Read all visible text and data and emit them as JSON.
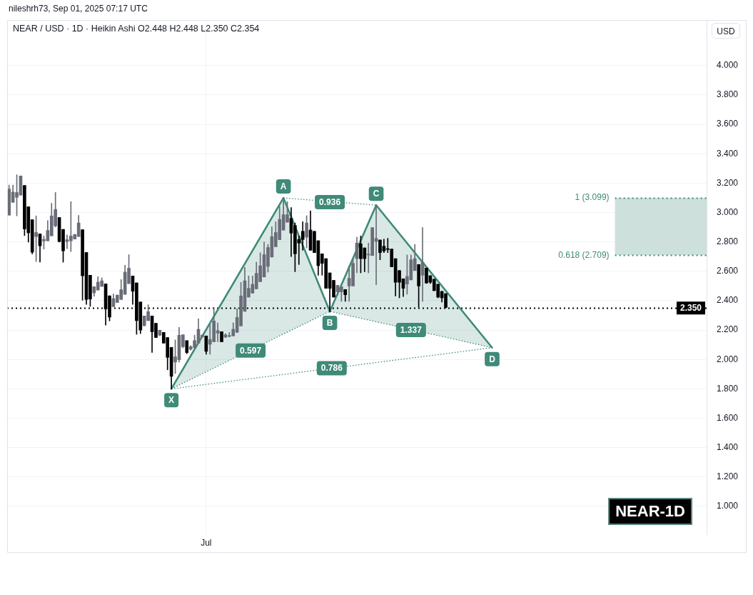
{
  "chart_data": {
    "type": "candlestick",
    "title": "NEAR / USD · 1D · Heikin Ashi O2.448 H2.448 L2.350 C2.354",
    "subtitle": "nileshrh73, Sep 01, 2025 07:17 UTC",
    "ylabel": "USD",
    "marker": "none",
    "grid": true,
    "categories": [
      null,
      null,
      null,
      null,
      null,
      null,
      null,
      null,
      null,
      null,
      null,
      null,
      null,
      null,
      null,
      null,
      null,
      null,
      null,
      null,
      null,
      null,
      null,
      null,
      null,
      null,
      null,
      null,
      null,
      null,
      null,
      null,
      null,
      null,
      null,
      null,
      null,
      null,
      null,
      null,
      null,
      null,
      null,
      null,
      null,
      null,
      null,
      null,
      null,
      null,
      null,
      "Jul",
      null,
      null,
      null,
      null,
      null,
      null,
      null,
      null,
      null,
      null,
      null,
      null,
      null,
      null,
      null,
      null,
      null,
      null,
      null,
      null,
      null,
      null,
      null,
      null,
      null,
      null,
      null,
      null,
      null,
      null,
      null,
      null,
      null,
      null,
      null,
      null,
      null,
      null,
      null,
      null,
      null,
      null,
      null,
      null,
      null,
      null,
      null,
      null,
      null,
      null,
      null,
      null,
      null,
      null,
      null,
      null,
      null,
      null,
      null,
      null,
      null,
      null,
      null,
      null,
      null,
      null,
      null,
      null,
      null,
      null,
      null,
      null,
      null,
      null,
      null,
      null,
      null,
      null,
      null,
      null,
      null,
      null,
      null,
      null,
      null,
      null,
      null,
      null,
      null,
      null,
      null,
      null,
      null,
      null,
      null,
      null,
      null,
      null,
      null,
      null,
      null,
      null,
      null,
      null,
      null,
      null,
      null,
      null,
      null,
      null,
      null,
      null,
      null,
      null,
      null,
      null,
      null,
      null,
      null,
      null,
      null,
      null,
      null,
      null,
      null,
      null,
      null,
      null,
      null
    ],
    "ohlc": [
      [
        2.982,
        3.187,
        2.982,
        3.16
      ],
      [
        3.069,
        3.187,
        3.069,
        3.139
      ],
      [
        3.103,
        3.257,
        2.977,
        3.136
      ],
      [
        3.118,
        3.249,
        3.118,
        3.249
      ],
      [
        3.184,
        3.184,
        2.843,
        2.888
      ],
      [
        3.039,
        3.039,
        2.798,
        2.861
      ],
      [
        2.951,
        2.951,
        2.718,
        2.73
      ],
      [
        2.836,
        2.977,
        2.666,
        2.864
      ],
      [
        2.854,
        2.854,
        2.662,
        2.773
      ],
      [
        2.807,
        2.84,
        2.751,
        2.817
      ],
      [
        2.807,
        2.945,
        2.807,
        2.878
      ],
      [
        2.841,
        3.063,
        2.841,
        2.977
      ],
      [
        2.909,
        3.136,
        2.901,
        3.021
      ],
      [
        2.966,
        2.966,
        2.798,
        2.802
      ],
      [
        2.885,
        2.885,
        2.662,
        2.739
      ],
      [
        2.802,
        2.848,
        2.754,
        2.815
      ],
      [
        2.807,
        3.074,
        2.734,
        2.84
      ],
      [
        2.819,
        2.851,
        2.819,
        2.851
      ],
      [
        2.836,
        2.98,
        2.836,
        2.929
      ],
      [
        2.883,
        2.883,
        2.403,
        2.569
      ],
      [
        2.728,
        2.728,
        2.375,
        2.408
      ],
      [
        2.573,
        2.573,
        2.361,
        2.411
      ],
      [
        2.453,
        2.495,
        2.43,
        2.495
      ],
      [
        2.472,
        2.563,
        2.472,
        2.526
      ],
      [
        2.497,
        2.555,
        2.497,
        2.535
      ],
      [
        2.514,
        2.514,
        2.234,
        2.343
      ],
      [
        2.433,
        2.433,
        2.262,
        2.288
      ],
      [
        2.359,
        2.445,
        2.359,
        2.414
      ],
      [
        2.387,
        2.438,
        2.387,
        2.438
      ],
      [
        2.408,
        2.544,
        2.408,
        2.475
      ],
      [
        2.443,
        2.641,
        2.443,
        2.594
      ],
      [
        2.516,
        2.713,
        2.516,
        2.621
      ],
      [
        2.568,
        2.568,
        2.375,
        2.464
      ],
      [
        2.521,
        2.521,
        2.171,
        2.264
      ],
      [
        2.391,
        2.391,
        2.176,
        2.2
      ],
      [
        2.229,
        2.296,
        2.229,
        2.296
      ],
      [
        2.264,
        2.372,
        2.264,
        2.325
      ],
      [
        2.296,
        2.296,
        2.047,
        2.188
      ],
      [
        2.246,
        2.246,
        2.149,
        2.149
      ],
      [
        2.165,
        2.199,
        2.16,
        2.199
      ],
      [
        2.184,
        2.184,
        2.111,
        2.111
      ],
      [
        2.149,
        2.149,
        1.929,
        2.014
      ],
      [
        2.082,
        2.082,
        1.8,
        1.885
      ],
      [
        1.982,
        2.133,
        1.904,
        2.018
      ],
      [
        1.998,
        2.218,
        1.982,
        2.165
      ],
      [
        2.087,
        2.168,
        2.079,
        2.168
      ],
      [
        2.128,
        2.128,
        2.039,
        2.047
      ],
      [
        2.069,
        2.095,
        2.063,
        2.087
      ],
      [
        2.079,
        2.165,
        2.079,
        2.128
      ],
      [
        2.111,
        2.277,
        2.111,
        2.205
      ],
      [
        2.154,
        2.168,
        2.149,
        2.165
      ],
      [
        2.16,
        2.16,
        2.035,
        2.055
      ],
      [
        2.103,
        2.238,
        2.035,
        2.136
      ],
      [
        2.12,
        2.354,
        2.12,
        2.262
      ],
      [
        2.179,
        2.249,
        2.12,
        2.196
      ],
      [
        2.189,
        2.189,
        2.12,
        2.12
      ],
      [
        2.152,
        2.176,
        2.147,
        2.168
      ],
      [
        2.157,
        2.184,
        2.152,
        2.163
      ],
      [
        2.16,
        2.249,
        2.16,
        2.205
      ],
      [
        2.184,
        2.346,
        2.184,
        2.286
      ],
      [
        2.228,
        2.524,
        2.228,
        2.432
      ],
      [
        2.327,
        2.626,
        2.327,
        2.535
      ],
      [
        2.424,
        2.568,
        2.424,
        2.484
      ],
      [
        2.451,
        2.568,
        2.451,
        2.511
      ],
      [
        2.48,
        2.662,
        2.48,
        2.586
      ],
      [
        2.529,
        2.726,
        2.529,
        2.637
      ],
      [
        2.561,
        2.799,
        2.561,
        2.713
      ],
      [
        2.633,
        2.783,
        2.594,
        2.762
      ],
      [
        2.697,
        2.904,
        2.697,
        2.836
      ],
      [
        2.767,
        2.937,
        2.767,
        2.864
      ],
      [
        2.815,
        3.042,
        2.815,
        2.953
      ],
      [
        2.88,
        3.099,
        2.88,
        2.985
      ],
      [
        2.934,
        3.074,
        2.934,
        2.985
      ],
      [
        2.96,
        3.034,
        2.7,
        2.86
      ],
      [
        2.912,
        2.929,
        2.597,
        2.719
      ],
      [
        2.816,
        2.84,
        2.646,
        2.792
      ],
      [
        2.872,
        2.937,
        2.743,
        2.816
      ],
      [
        2.832,
        2.978,
        2.759,
        2.929
      ],
      [
        2.881,
        3.01,
        2.743,
        2.743
      ],
      [
        2.872,
        2.872,
        2.727,
        2.727
      ],
      [
        2.808,
        2.808,
        2.573,
        2.638
      ],
      [
        2.719,
        2.719,
        2.573,
        2.654
      ],
      [
        2.686,
        2.686,
        2.484,
        2.484
      ],
      [
        2.589,
        2.589,
        2.322,
        2.484
      ],
      [
        2.538,
        2.538,
        2.424,
        2.424
      ],
      [
        2.46,
        2.504,
        2.436,
        2.504
      ],
      [
        2.46,
        2.495,
        2.395,
        2.495
      ],
      [
        2.476,
        2.476,
        2.395,
        2.44
      ],
      [
        2.5,
        2.638,
        2.395,
        2.552
      ],
      [
        2.5,
        2.686,
        2.5,
        2.654
      ],
      [
        2.686,
        2.832,
        2.589,
        2.792
      ],
      [
        2.787,
        2.84,
        2.589,
        2.686
      ],
      [
        2.759,
        2.759,
        2.597,
        2.686
      ],
      [
        2.711,
        2.792,
        2.589,
        2.717
      ],
      [
        2.707,
        2.897,
        2.707,
        2.897
      ],
      [
        2.803,
        3.05,
        2.508,
        2.824
      ],
      [
        2.813,
        2.813,
        2.678,
        2.727
      ],
      [
        2.77,
        2.819,
        2.727,
        2.738
      ],
      [
        2.754,
        2.824,
        2.727,
        2.748
      ],
      [
        2.751,
        2.751,
        2.63,
        2.63
      ],
      [
        2.686,
        2.686,
        2.432,
        2.525
      ],
      [
        2.605,
        2.605,
        2.419,
        2.525
      ],
      [
        2.549,
        2.549,
        2.428,
        2.484
      ],
      [
        2.513,
        2.711,
        2.444,
        2.565
      ],
      [
        2.541,
        2.711,
        2.541,
        2.678
      ],
      [
        2.605,
        2.783,
        2.605,
        2.686
      ],
      [
        2.646,
        2.646,
        2.355,
        2.5
      ],
      [
        2.573,
        2.897,
        2.395,
        2.662
      ],
      [
        2.622,
        2.622,
        2.517,
        2.52
      ],
      [
        2.57,
        2.57,
        2.517,
        2.525
      ],
      [
        2.546,
        2.546,
        2.468,
        2.468
      ],
      [
        2.512,
        2.512,
        2.419,
        2.424
      ],
      [
        2.463,
        2.463,
        2.39,
        2.419
      ],
      [
        2.448,
        2.448,
        2.35,
        2.354
      ],
      null,
      null,
      null,
      null,
      null,
      null,
      null,
      null,
      null,
      null,
      null,
      null,
      null,
      null,
      null,
      null,
      null,
      null,
      null,
      null,
      null,
      null,
      null,
      null,
      null,
      null,
      null,
      null,
      null,
      null,
      null,
      null,
      null,
      null,
      null,
      null,
      null,
      null,
      null,
      null,
      null,
      null,
      null,
      null,
      null,
      null,
      null,
      null,
      null,
      null,
      null,
      null,
      null,
      null,
      null,
      null,
      null,
      null,
      null,
      null,
      null,
      null,
      null,
      null,
      null,
      null,
      null
    ],
    "colors": [
      "#6a6d78",
      "#6a6d78",
      "#6a6d78",
      "#6a6d78",
      "#000000",
      "#000000",
      "#000000",
      "#6a6d78",
      "#000000",
      "#6a6d78",
      "#6a6d78",
      "#6a6d78",
      "#6a6d78",
      "#000000",
      "#000000",
      "#6a6d78",
      "#6a6d78",
      "#6a6d78",
      "#6a6d78",
      "#000000",
      "#000000",
      "#000000",
      "#6a6d78",
      "#6a6d78",
      "#6a6d78",
      "#000000",
      "#000000",
      "#6a6d78",
      "#6a6d78",
      "#6a6d78",
      "#6a6d78",
      "#6a6d78",
      "#000000",
      "#000000",
      "#000000",
      "#6a6d78",
      "#6a6d78",
      "#000000",
      "#000000",
      "#6a6d78",
      "#000000",
      "#000000",
      "#000000",
      "#6a6d78",
      "#6a6d78",
      "#6a6d78",
      "#000000",
      "#6a6d78",
      "#6a6d78",
      "#6a6d78",
      "#6a6d78",
      "#000000",
      "#6a6d78",
      "#6a6d78",
      "#6a6d78",
      "#000000",
      "#6a6d78",
      "#6a6d78",
      "#6a6d78",
      "#6a6d78",
      "#6a6d78",
      "#6a6d78",
      "#6a6d78",
      "#6a6d78",
      "#6a6d78",
      "#6a6d78",
      "#6a6d78",
      "#6a6d78",
      "#6a6d78",
      "#6a6d78",
      "#6a6d78",
      "#6a6d78",
      "#6a6d78",
      "#000000",
      "#000000",
      "#000000",
      "#000000",
      "#6a6d78",
      "#000000",
      "#000000",
      "#000000",
      "#000000",
      "#000000",
      "#000000",
      "#000000",
      "#6a6d78",
      "#6a6d78",
      "#000000",
      "#6a6d78",
      "#6a6d78",
      "#6a6d78",
      "#000000",
      "#000000",
      "#6a6d78",
      "#6a6d78",
      "#6a6d78",
      "#000000",
      "#000000",
      "#000000",
      "#000000",
      "#000000",
      "#000000",
      "#000000",
      "#6a6d78",
      "#6a6d78",
      "#6a6d78",
      "#000000",
      "#6a6d78",
      "#000000",
      "#000000",
      "#000000",
      "#000000",
      "#000000",
      "#000000",
      null,
      null,
      null,
      null,
      null,
      null,
      null,
      null,
      null,
      null,
      null,
      null,
      null,
      null,
      null,
      null,
      null,
      null,
      null,
      null,
      null,
      null,
      null,
      null,
      null,
      null,
      null,
      null,
      null,
      null,
      null,
      null,
      null,
      null,
      null,
      null,
      null,
      null,
      null,
      null,
      null,
      null,
      null,
      null,
      null,
      null,
      null,
      null,
      null,
      null,
      null,
      null,
      null,
      null,
      null,
      null,
      null,
      null,
      null,
      null,
      null,
      null,
      null,
      null,
      null,
      null,
      null
    ],
    "series": [
      {
        "type": "line",
        "color": "#3f8a78",
        "values": [
          null,
          null,
          null,
          null,
          null,
          null,
          null,
          null,
          null,
          null,
          null,
          null,
          null,
          null,
          null,
          null,
          null,
          null,
          null,
          null,
          null,
          null,
          null,
          null,
          null,
          null,
          null,
          null,
          null,
          null,
          null,
          null,
          null,
          null,
          null,
          null,
          null,
          null,
          null,
          null,
          null,
          null,
          1.8,
          null,
          null,
          null,
          null,
          null,
          null,
          null,
          null,
          null,
          null,
          null,
          null,
          null,
          null,
          null,
          null,
          null,
          null,
          null,
          null,
          null,
          null,
          null,
          null,
          null,
          null,
          null,
          null,
          3.099,
          null,
          null,
          null,
          null,
          null,
          null,
          null,
          null,
          null,
          null,
          null,
          2.327,
          null,
          null,
          null,
          null,
          null,
          null,
          null,
          null,
          null,
          null,
          null,
          3.05,
          null,
          null,
          null,
          null,
          null,
          null,
          null,
          null,
          null,
          null,
          null,
          null,
          null,
          null,
          null,
          null,
          null,
          null,
          null,
          null,
          null,
          null,
          null,
          null,
          null,
          null,
          null,
          null,
          null,
          2.08,
          null,
          null,
          null,
          null,
          null,
          null,
          null,
          null,
          null,
          null,
          null,
          null,
          null,
          null,
          null,
          null,
          null,
          null,
          null,
          null,
          null,
          null,
          null,
          null,
          null,
          null,
          null,
          null,
          null,
          null,
          null,
          null,
          null,
          null,
          null,
          null,
          null,
          null,
          null,
          null,
          null,
          null,
          null,
          null,
          null,
          null,
          null,
          null,
          null,
          null,
          null,
          null,
          null,
          null,
          null
        ],
        "lower": [
          null,
          null,
          null,
          null,
          null,
          null,
          null,
          null,
          null,
          null,
          null,
          null,
          null,
          null,
          null,
          null,
          null,
          null,
          null,
          null,
          null,
          null,
          null,
          null,
          null,
          null,
          null,
          null,
          null,
          null,
          null,
          null,
          null,
          null,
          null,
          null,
          null,
          null,
          null,
          null,
          null,
          null,
          1.8,
          null,
          null,
          null,
          null,
          null,
          null,
          null,
          null,
          null,
          null,
          null,
          null,
          null,
          null,
          null,
          null,
          null,
          null,
          null,
          null,
          null,
          null,
          null,
          null,
          null,
          null,
          null,
          null,
          2.173,
          null,
          null,
          null,
          null,
          null,
          null,
          null,
          null,
          null,
          null,
          null,
          2.327,
          null,
          null,
          null,
          null,
          null,
          null,
          null,
          null,
          null,
          null,
          null,
          2.256,
          null,
          null,
          null,
          null,
          null,
          null,
          null,
          null,
          null,
          null,
          null,
          null,
          null,
          null,
          null,
          null,
          null,
          null,
          null,
          null,
          null,
          null,
          null,
          null,
          null,
          null,
          null,
          null,
          null,
          2.08,
          null,
          null,
          null,
          null,
          null,
          null,
          null,
          null,
          null,
          null,
          null,
          null,
          null,
          null,
          null,
          null,
          null,
          null,
          null,
          null,
          null,
          null,
          null,
          null,
          null,
          null,
          null,
          null,
          null,
          null,
          null,
          null,
          null,
          null,
          null,
          null,
          null,
          null,
          null,
          null,
          null,
          null,
          null,
          null,
          null,
          null,
          null,
          null,
          null,
          null,
          null,
          null,
          null,
          null,
          null
        ],
        "upper": [
          null,
          null,
          null,
          null,
          null,
          null,
          null,
          null,
          null,
          null,
          null,
          null,
          null,
          null,
          null,
          null,
          null,
          null,
          null,
          null,
          null,
          null,
          null,
          null,
          null,
          null,
          null,
          null,
          null,
          null,
          null,
          null,
          null,
          null,
          null,
          null,
          null,
          null,
          null,
          null,
          null,
          null,
          1.8,
          null,
          null,
          null,
          null,
          null,
          null,
          null,
          null,
          null,
          null,
          null,
          null,
          null,
          null,
          null,
          null,
          null,
          null,
          null,
          null,
          null,
          null,
          null,
          null,
          null,
          null,
          null,
          null,
          3.099,
          null,
          null,
          null,
          null,
          null,
          null,
          null,
          null,
          null,
          null,
          null,
          2.327,
          null,
          null,
          null,
          null,
          null,
          null,
          null,
          null,
          null,
          null,
          null,
          3.05,
          null,
          null,
          null,
          null,
          null,
          null,
          null,
          null,
          null,
          null,
          null,
          null,
          null,
          null,
          null,
          null,
          null,
          null,
          null,
          null,
          null,
          null,
          null,
          null,
          null,
          null,
          null,
          null,
          null,
          2.08,
          null,
          null,
          null,
          null,
          null,
          null,
          null,
          null,
          null,
          null,
          null,
          null,
          null,
          null,
          null,
          null,
          null,
          null,
          null,
          null,
          null,
          null,
          null,
          null,
          null,
          null,
          null,
          null,
          null,
          null,
          null,
          null,
          null,
          null,
          null,
          null,
          null,
          null,
          null,
          null,
          null,
          null,
          null,
          null,
          null,
          null,
          null,
          null,
          null,
          null,
          null,
          null,
          null,
          null,
          null
        ]
      },
      {
        "type": "line",
        "color": "#3f8a78",
        "line_style": "dotted",
        "values": [
          null,
          null,
          null,
          null,
          null,
          null,
          null,
          null,
          null,
          null,
          null,
          null,
          null,
          null,
          null,
          null,
          null,
          null,
          null,
          null,
          null,
          null,
          null,
          null,
          null,
          null,
          null,
          null,
          null,
          null,
          null,
          null,
          null,
          null,
          null,
          null,
          null,
          null,
          null,
          null,
          null,
          null,
          1.8,
          null,
          null,
          null,
          null,
          null,
          null,
          null,
          null,
          null,
          null,
          null,
          null,
          null,
          null,
          null,
          null,
          null,
          null,
          null,
          null,
          null,
          null,
          null,
          null,
          null,
          null,
          null,
          null,
          null,
          null,
          null,
          null,
          null,
          null,
          null,
          null,
          null,
          null,
          null,
          null,
          2.327,
          null,
          null,
          null,
          null,
          null,
          null,
          null,
          null,
          null,
          null,
          null,
          null,
          null,
          null,
          null,
          null,
          null,
          null,
          null,
          null,
          null,
          null,
          null,
          null,
          null,
          null,
          null,
          null,
          null,
          null,
          null,
          null,
          null,
          null,
          null,
          null,
          null,
          null,
          null,
          null,
          null,
          2.08,
          null,
          null,
          null,
          null,
          null,
          null,
          null,
          null,
          null,
          null,
          null,
          null,
          null,
          null,
          null,
          null,
          null,
          null,
          null,
          null,
          null,
          null,
          null,
          null,
          null,
          null,
          null,
          null,
          null,
          null,
          null,
          null,
          null,
          null,
          null,
          null,
          null,
          null,
          null,
          null,
          null,
          null,
          null,
          null,
          null,
          null,
          null,
          null,
          null,
          null,
          null,
          null,
          null,
          null,
          null
        ]
      },
      {
        "type": "line",
        "color": "#3f8a78",
        "line_style": "dotted",
        "values": [
          null,
          null,
          null,
          null,
          null,
          null,
          null,
          null,
          null,
          null,
          null,
          null,
          null,
          null,
          null,
          null,
          null,
          null,
          null,
          null,
          null,
          null,
          null,
          null,
          null,
          null,
          null,
          null,
          null,
          null,
          null,
          null,
          null,
          null,
          null,
          null,
          null,
          null,
          null,
          null,
          null,
          null,
          null,
          null,
          null,
          null,
          null,
          null,
          null,
          null,
          null,
          null,
          null,
          null,
          null,
          null,
          null,
          null,
          null,
          null,
          null,
          null,
          null,
          null,
          null,
          null,
          null,
          null,
          null,
          null,
          null,
          3.099,
          null,
          null,
          null,
          null,
          null,
          null,
          null,
          null,
          null,
          null,
          null,
          null,
          null,
          null,
          null,
          null,
          null,
          null,
          null,
          null,
          null,
          null,
          null,
          3.05,
          null,
          null,
          null,
          null,
          null,
          null,
          null,
          null,
          null,
          null,
          null,
          null,
          null,
          null,
          null,
          null,
          null,
          null,
          null,
          null,
          null,
          null,
          null,
          null,
          null,
          null,
          null,
          null,
          null,
          null,
          null,
          null,
          null,
          null,
          null,
          null,
          null,
          null,
          null,
          null,
          null,
          null,
          null,
          null,
          null,
          null,
          null,
          null,
          null,
          null,
          null,
          null,
          null,
          null,
          null,
          null,
          null,
          null,
          null,
          null,
          null,
          null,
          null,
          null,
          null,
          null,
          null,
          null,
          null,
          null,
          null,
          null,
          null,
          null,
          null,
          null,
          null,
          null,
          null,
          null,
          null,
          null,
          null,
          null,
          null
        ]
      },
      {
        "type": "line",
        "color": "#3f8a78",
        "line_style": "dotted",
        "values": [
          null,
          null,
          null,
          null,
          null,
          null,
          null,
          null,
          null,
          null,
          null,
          null,
          null,
          null,
          null,
          null,
          null,
          null,
          null,
          null,
          null,
          null,
          null,
          null,
          null,
          null,
          null,
          null,
          null,
          null,
          null,
          null,
          null,
          null,
          null,
          null,
          null,
          null,
          null,
          null,
          null,
          null,
          1.8,
          null,
          null,
          null,
          null,
          null,
          null,
          null,
          null,
          null,
          null,
          null,
          null,
          null,
          null,
          null,
          null,
          null,
          null,
          null,
          null,
          null,
          null,
          null,
          null,
          null,
          null,
          null,
          null,
          null,
          null,
          null,
          null,
          null,
          null,
          null,
          null,
          null,
          null,
          null,
          null,
          null,
          null,
          null,
          null,
          null,
          null,
          null,
          null,
          null,
          null,
          null,
          null,
          null,
          null,
          null,
          null,
          null,
          null,
          null,
          null,
          null,
          null,
          null,
          null,
          null,
          null,
          null,
          null,
          null,
          null,
          null,
          null,
          null,
          null,
          null,
          null,
          null,
          null,
          null,
          null,
          null,
          null,
          2.08,
          null,
          null,
          null,
          null,
          null,
          null,
          null,
          null,
          null,
          null,
          null,
          null,
          null,
          null,
          null,
          null,
          null,
          null,
          null,
          null,
          null,
          null,
          null,
          null,
          null,
          null,
          null,
          null,
          null,
          null,
          null,
          null,
          null,
          null,
          null,
          null,
          null,
          null,
          null,
          null,
          null,
          null,
          null,
          null,
          null,
          null,
          null,
          null,
          null,
          null,
          null,
          null,
          null,
          null,
          null
        ]
      }
    ],
    "ylim": [
      0.81,
      4.31
    ],
    "yticks": [
      {
        "value": 1,
        "label": "1.000"
      },
      {
        "value": 1.2,
        "label": "1.200"
      },
      {
        "value": 1.4,
        "label": "1.400"
      },
      {
        "value": 1.6,
        "label": "1.600"
      },
      {
        "value": 1.8,
        "label": "1.800"
      },
      {
        "value": 2,
        "label": "2.000"
      },
      {
        "value": 2.2,
        "label": "2.200"
      },
      {
        "value": 2.4,
        "label": "2.400"
      },
      {
        "value": 2.6,
        "label": "2.600"
      },
      {
        "value": 2.8,
        "label": "2.800"
      },
      {
        "value": 3,
        "label": "3.000"
      },
      {
        "value": 3.2,
        "label": "3.200"
      },
      {
        "value": 3.4,
        "label": "3.400"
      },
      {
        "value": 3.6,
        "label": "3.600"
      },
      {
        "value": 3.8,
        "label": "3.800"
      },
      {
        "value": 4,
        "label": "4.000"
      }
    ],
    "ref_lines": [
      {
        "axis": "y",
        "value": 2.35,
        "label": "2.350",
        "color": "#000000",
        "line_style": "dotted"
      },
      {
        "axis": "y",
        "value": 3.099,
        "label": "1 (3.099)",
        "color": "#3f8a78",
        "line_style": "dotted"
      },
      {
        "axis": "y",
        "value": 2.709,
        "label": "0.618 (2.709)",
        "color": "#3f8a78",
        "line_style": "dotted"
      }
    ],
    "bands": [
      {
        "axis": "y",
        "from": 2.709,
        "to": 3.099,
        "color": "#cde0dc"
      }
    ],
    "annotations": [
      {
        "text": "X",
        "y": 1.8
      },
      {
        "text": "A",
        "y": 3.099
      },
      {
        "text": "B",
        "y": 2.327
      },
      {
        "text": "C",
        "y": 3.05
      },
      {
        "text": "D",
        "y": 2.08
      },
      {
        "text": "0.597",
        "y": 2.06
      },
      {
        "text": "0.936",
        "y": 3.07
      },
      {
        "text": "1.337",
        "y": 2.2
      },
      {
        "text": "0.786",
        "y": 1.94
      },
      "NEAR-1D"
    ]
  }
}
